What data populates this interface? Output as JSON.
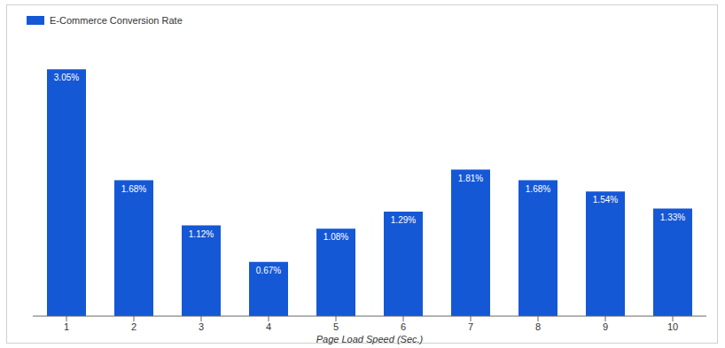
{
  "chart_data": {
    "type": "bar",
    "categories": [
      "1",
      "2",
      "3",
      "4",
      "5",
      "6",
      "7",
      "8",
      "9",
      "10"
    ],
    "x_label": "Page Load Speed (Sec.)",
    "series": [
      {
        "name": "E-Commerce Conversion Rate",
        "color": "#1558d6",
        "values": [
          3.05,
          1.68,
          1.12,
          0.67,
          1.08,
          1.29,
          1.81,
          1.68,
          1.54,
          1.33
        ],
        "value_labels": [
          "3.05%",
          "1.68%",
          "1.12%",
          "0.67%",
          "1.08%",
          "1.29%",
          "1.81%",
          "1.68%",
          "1.54%",
          "1.33%"
        ]
      }
    ],
    "ylim": [
      0,
      3.5
    ],
    "legend": "top-left",
    "data_labels": true,
    "tick_labels": "x"
  }
}
